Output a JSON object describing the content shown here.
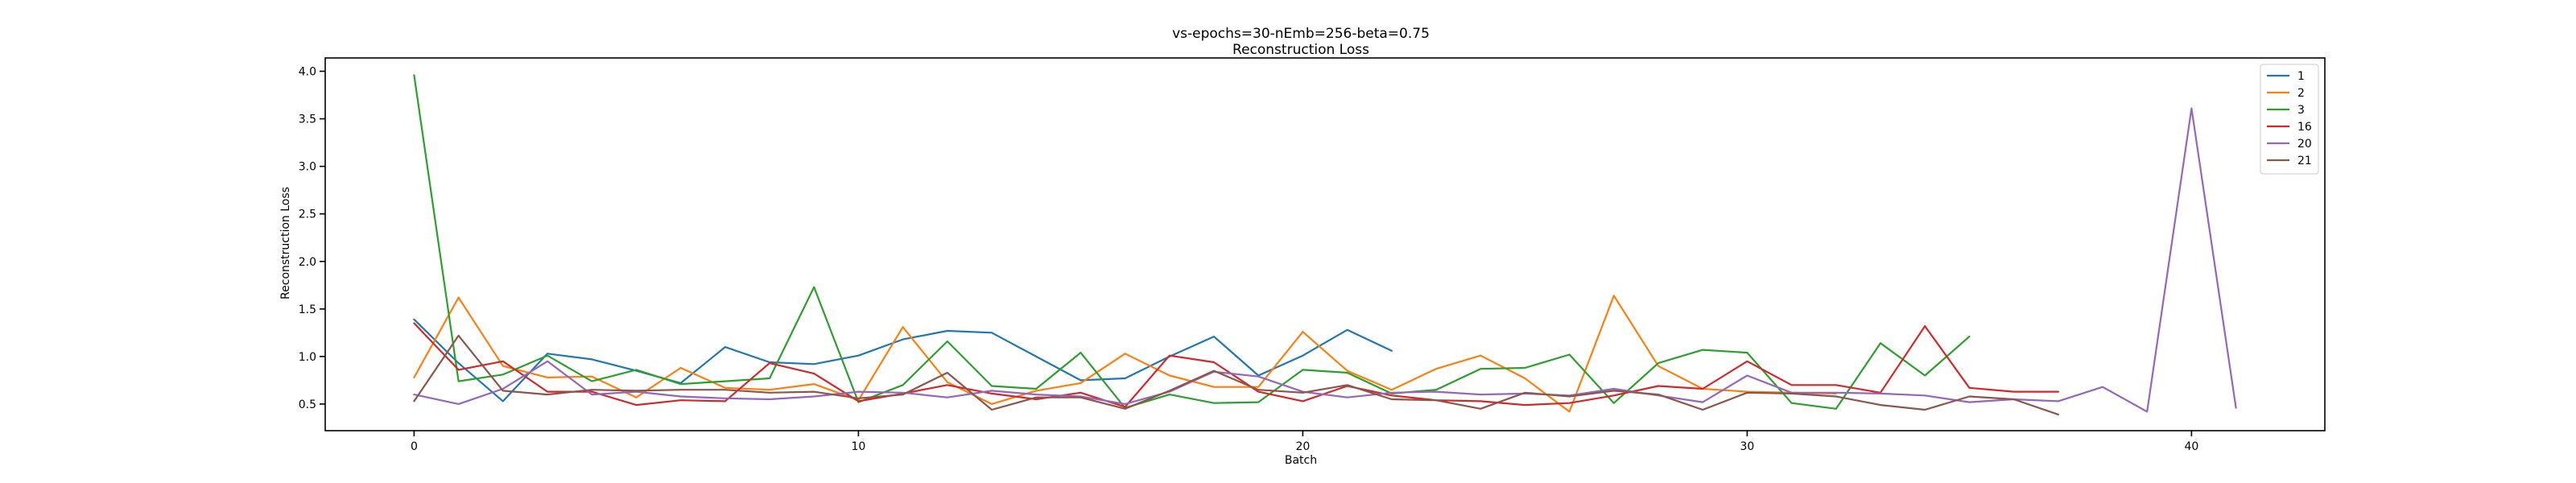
{
  "chart_data": {
    "type": "line",
    "title": "vs-epochs=30-nEmb=256-beta=0.75",
    "subtitle": "Reconstruction Loss",
    "xlabel": "Batch",
    "ylabel": "Reconstruction Loss",
    "xlim": [
      -2,
      43
    ],
    "ylim": [
      0.22,
      4.14
    ],
    "xticks": [
      0,
      10,
      20,
      30,
      40
    ],
    "yticks": [
      0.5,
      1.0,
      1.5,
      2.0,
      2.5,
      3.0,
      3.5,
      4.0
    ],
    "ytick_labels": [
      "0.5",
      "1.0",
      "1.5",
      "2.0",
      "2.5",
      "3.0",
      "3.5",
      "4.0"
    ],
    "grid": false,
    "legend_position": "top-right",
    "series": [
      {
        "name": "1",
        "color": "#1f77b4",
        "x": [
          0,
          1,
          2,
          3,
          4,
          5,
          6,
          7,
          8,
          9,
          10,
          11,
          12,
          13,
          14,
          15,
          16,
          17,
          18,
          19,
          20,
          21,
          22
        ],
        "y": [
          1.39,
          0.93,
          0.53,
          1.03,
          0.97,
          0.85,
          0.72,
          1.1,
          0.94,
          0.92,
          1.01,
          1.18,
          1.27,
          1.25,
          1.0,
          0.75,
          0.77,
          1.0,
          1.21,
          0.8,
          1.01,
          1.28,
          1.06
        ]
      },
      {
        "name": "2",
        "color": "#ff7f0e",
        "x": [
          0,
          1,
          2,
          3,
          4,
          5,
          6,
          7,
          8,
          9,
          10,
          11,
          12,
          13,
          14,
          15,
          16,
          17,
          18,
          19,
          20,
          21,
          22,
          23,
          24,
          25,
          26,
          27,
          28,
          29,
          30,
          31,
          32
        ],
        "y": [
          0.78,
          1.62,
          0.9,
          0.78,
          0.79,
          0.57,
          0.88,
          0.67,
          0.65,
          0.71,
          0.54,
          1.31,
          0.73,
          0.5,
          0.64,
          0.72,
          1.03,
          0.8,
          0.68,
          0.68,
          1.26,
          0.85,
          0.65,
          0.87,
          1.01,
          0.77,
          0.42,
          1.64,
          0.9,
          0.66,
          0.63,
          0.62,
          0.61
        ]
      },
      {
        "name": "3",
        "color": "#2ca02c",
        "x": [
          0,
          1,
          2,
          3,
          4,
          5,
          6,
          7,
          8,
          9,
          10,
          11,
          12,
          13,
          14,
          15,
          16,
          17,
          18,
          19,
          20,
          21,
          22,
          23,
          24,
          25,
          26,
          27,
          28,
          29,
          30,
          31,
          32,
          33,
          34,
          35
        ],
        "y": [
          3.96,
          0.74,
          0.81,
          1.01,
          0.74,
          0.86,
          0.71,
          0.74,
          0.77,
          1.73,
          0.52,
          0.7,
          1.16,
          0.69,
          0.66,
          1.04,
          0.46,
          0.6,
          0.51,
          0.52,
          0.86,
          0.83,
          0.61,
          0.65,
          0.87,
          0.88,
          1.02,
          0.51,
          0.93,
          1.07,
          1.04,
          0.51,
          0.45,
          1.14,
          0.8,
          1.21
        ]
      },
      {
        "name": "16",
        "color": "#d62728",
        "x": [
          0,
          1,
          2,
          3,
          4,
          5,
          6,
          7,
          8,
          9,
          10,
          11,
          12,
          13,
          14,
          15,
          16,
          17,
          18,
          19,
          20,
          21,
          22,
          23,
          24,
          25,
          26,
          27,
          28,
          29,
          30,
          31,
          32,
          33,
          34,
          35,
          36,
          37
        ],
        "y": [
          1.35,
          0.86,
          0.95,
          0.63,
          0.63,
          0.49,
          0.54,
          0.53,
          0.93,
          0.82,
          0.53,
          0.61,
          0.7,
          0.61,
          0.55,
          0.62,
          0.47,
          1.01,
          0.94,
          0.63,
          0.53,
          0.69,
          0.59,
          0.54,
          0.53,
          0.49,
          0.51,
          0.59,
          0.69,
          0.66,
          0.95,
          0.7,
          0.7,
          0.62,
          1.32,
          0.67,
          0.63,
          0.63
        ]
      },
      {
        "name": "20",
        "color": "#9467bd",
        "x": [
          0,
          1,
          2,
          3,
          4,
          5,
          6,
          7,
          8,
          9,
          10,
          11,
          12,
          13,
          14,
          15,
          16,
          17,
          18,
          19,
          20,
          21,
          22,
          23,
          24,
          25,
          26,
          27,
          28,
          29,
          30,
          31,
          32,
          33,
          34,
          35,
          36,
          37,
          38,
          39,
          40,
          41
        ],
        "y": [
          0.6,
          0.5,
          0.66,
          0.95,
          0.6,
          0.63,
          0.58,
          0.56,
          0.55,
          0.58,
          0.63,
          0.62,
          0.57,
          0.64,
          0.6,
          0.58,
          0.5,
          0.63,
          0.84,
          0.79,
          0.63,
          0.57,
          0.62,
          0.63,
          0.6,
          0.61,
          0.59,
          0.66,
          0.59,
          0.52,
          0.8,
          0.62,
          0.62,
          0.61,
          0.59,
          0.52,
          0.55,
          0.53,
          0.68,
          0.42,
          3.61,
          0.46
        ]
      },
      {
        "name": "21",
        "color": "#8c564b",
        "x": [
          0,
          1,
          2,
          3,
          4,
          5,
          6,
          7,
          8,
          9,
          10,
          11,
          12,
          13,
          14,
          15,
          16,
          17,
          18,
          19,
          20,
          21,
          22,
          23,
          24,
          25,
          26,
          27,
          28,
          29,
          30,
          31,
          32,
          33,
          34,
          35,
          36,
          37
        ],
        "y": [
          0.53,
          1.22,
          0.64,
          0.6,
          0.65,
          0.64,
          0.65,
          0.65,
          0.62,
          0.63,
          0.56,
          0.6,
          0.83,
          0.44,
          0.57,
          0.57,
          0.45,
          0.64,
          0.85,
          0.65,
          0.62,
          0.7,
          0.55,
          0.54,
          0.45,
          0.62,
          0.58,
          0.64,
          0.6,
          0.44,
          0.62,
          0.61,
          0.58,
          0.49,
          0.44,
          0.58,
          0.55,
          0.39
        ]
      }
    ]
  }
}
